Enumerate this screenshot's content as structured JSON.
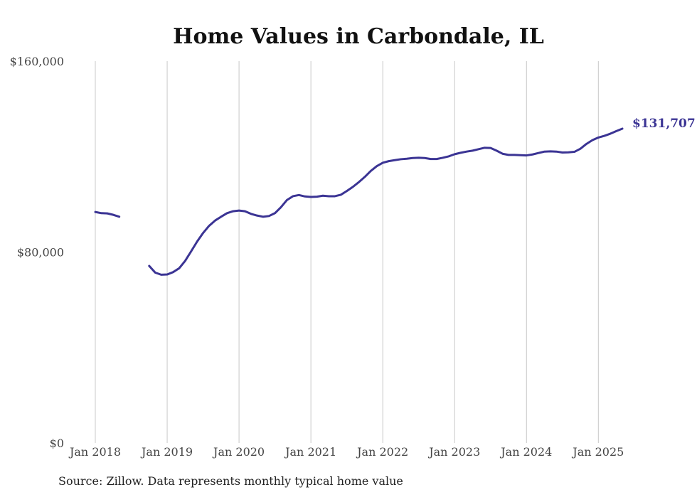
{
  "chart_data": {
    "type": "line",
    "title": "Home Values in Carbondale, IL",
    "xlabel": "",
    "ylabel": "",
    "ylim": [
      0,
      160000
    ],
    "grid": "vertical",
    "y_ticks": [
      {
        "value": 0,
        "label": "$0"
      },
      {
        "value": 80000,
        "label": "$80,000"
      },
      {
        "value": 160000,
        "label": "$160,000"
      }
    ],
    "x_ticks": [
      {
        "value": "2018-01",
        "label": "Jan 2018"
      },
      {
        "value": "2019-01",
        "label": "Jan 2019"
      },
      {
        "value": "2020-01",
        "label": "Jan 2020"
      },
      {
        "value": "2021-01",
        "label": "Jan 2021"
      },
      {
        "value": "2022-01",
        "label": "Jan 2022"
      },
      {
        "value": "2023-01",
        "label": "Jan 2023"
      },
      {
        "value": "2024-01",
        "label": "Jan 2024"
      },
      {
        "value": "2025-01",
        "label": "Jan 2025"
      }
    ],
    "x_range": [
      "2018-01",
      "2025-05"
    ],
    "series": [
      {
        "color": "#3b3494",
        "x": [
          "2018-01",
          "2018-02",
          "2018-03",
          "2018-04",
          "2018-05",
          "2018-06",
          "2018-07",
          "2018-08",
          "2018-09",
          "2018-10",
          "2018-11",
          "2018-12",
          "2019-01",
          "2019-02",
          "2019-03",
          "2019-04",
          "2019-05",
          "2019-06",
          "2019-07",
          "2019-08",
          "2019-09",
          "2019-10",
          "2019-11",
          "2019-12",
          "2020-01",
          "2020-02",
          "2020-03",
          "2020-04",
          "2020-05",
          "2020-06",
          "2020-07",
          "2020-08",
          "2020-09",
          "2020-10",
          "2020-11",
          "2020-12",
          "2021-01",
          "2021-02",
          "2021-03",
          "2021-04",
          "2021-05",
          "2021-06",
          "2021-07",
          "2021-08",
          "2021-09",
          "2021-10",
          "2021-11",
          "2021-12",
          "2022-01",
          "2022-02",
          "2022-03",
          "2022-04",
          "2022-05",
          "2022-06",
          "2022-07",
          "2022-08",
          "2022-09",
          "2022-10",
          "2022-11",
          "2022-12",
          "2023-01",
          "2023-02",
          "2023-03",
          "2023-04",
          "2023-05",
          "2023-06",
          "2023-07",
          "2023-08",
          "2023-09",
          "2023-10",
          "2023-11",
          "2023-12",
          "2024-01",
          "2024-02",
          "2024-03",
          "2024-04",
          "2024-05",
          "2024-06",
          "2024-07",
          "2024-08",
          "2024-09",
          "2024-10",
          "2024-11",
          "2024-12",
          "2025-01",
          "2025-02",
          "2025-03",
          "2025-04",
          "2025-05"
        ],
        "values": [
          96800,
          96300,
          96200,
          95600,
          94800,
          null,
          null,
          null,
          null,
          74200,
          71400,
          70500,
          70600,
          71600,
          73200,
          76300,
          80300,
          84400,
          88000,
          91000,
          93200,
          94800,
          96300,
          97100,
          97400,
          97100,
          96000,
          95300,
          94800,
          95100,
          96300,
          98800,
          101800,
          103400,
          103900,
          103300,
          103100,
          103200,
          103600,
          103400,
          103400,
          104000,
          105600,
          107300,
          109300,
          111500,
          114000,
          116000,
          117400,
          118100,
          118500,
          118900,
          119100,
          119400,
          119500,
          119400,
          119000,
          119000,
          119500,
          120100,
          121000,
          121600,
          122100,
          122500,
          123100,
          123700,
          123600,
          122500,
          121200,
          120700,
          120700,
          120600,
          120500,
          120900,
          121500,
          122100,
          122200,
          122100,
          121700,
          121800,
          122000,
          123300,
          125300,
          126900,
          128000,
          128700,
          129600,
          130700,
          131707
        ]
      }
    ],
    "end_label": "$131,707"
  },
  "source": "Source: Zillow. Data represents monthly typical home value"
}
